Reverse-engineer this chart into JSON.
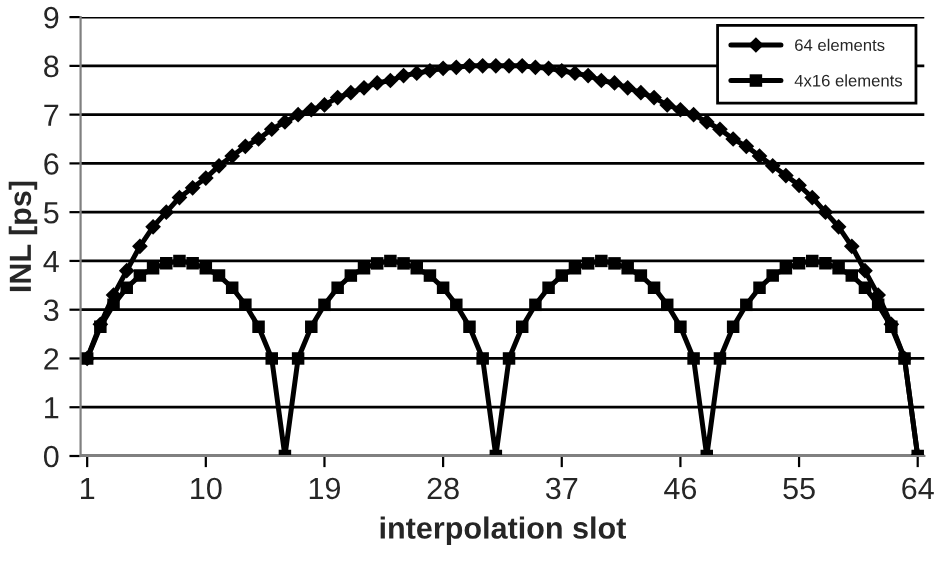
{
  "chart_data": {
    "type": "line",
    "xlabel": "interpolation slot",
    "ylabel": "INL [ps]",
    "x": [
      1,
      2,
      3,
      4,
      5,
      6,
      7,
      8,
      9,
      10,
      11,
      12,
      13,
      14,
      15,
      16,
      17,
      18,
      19,
      20,
      21,
      22,
      23,
      24,
      25,
      26,
      27,
      28,
      29,
      30,
      31,
      32,
      33,
      34,
      35,
      36,
      37,
      38,
      39,
      40,
      41,
      42,
      43,
      44,
      45,
      46,
      47,
      48,
      49,
      50,
      51,
      52,
      53,
      54,
      55,
      56,
      57,
      58,
      59,
      60,
      61,
      62,
      63,
      64
    ],
    "series": [
      {
        "name": "64 elements",
        "color": "#000000",
        "marker": "diamond",
        "values": [
          2,
          2.7,
          3.3,
          3.8,
          4.3,
          4.7,
          5.0,
          5.3,
          5.5,
          5.7,
          5.95,
          6.15,
          6.35,
          6.5,
          6.7,
          6.85,
          7.0,
          7.1,
          7.2,
          7.35,
          7.45,
          7.55,
          7.65,
          7.7,
          7.8,
          7.85,
          7.9,
          7.95,
          7.97,
          8.0,
          8.0,
          8.0,
          8.0,
          8.0,
          7.97,
          7.95,
          7.9,
          7.85,
          7.8,
          7.7,
          7.65,
          7.55,
          7.45,
          7.35,
          7.2,
          7.1,
          7.0,
          6.85,
          6.7,
          6.5,
          6.35,
          6.15,
          5.95,
          5.75,
          5.55,
          5.3,
          5.0,
          4.7,
          4.3,
          3.8,
          3.3,
          2.7,
          2.0,
          0
        ]
      },
      {
        "name": "4x16 elements",
        "color": "#000000",
        "marker": "square",
        "values": [
          2,
          2.65,
          3.1,
          3.45,
          3.7,
          3.85,
          3.95,
          4.0,
          3.95,
          3.85,
          3.7,
          3.45,
          3.1,
          2.65,
          2,
          0,
          2,
          2.65,
          3.1,
          3.45,
          3.7,
          3.85,
          3.95,
          4.0,
          3.95,
          3.85,
          3.7,
          3.45,
          3.1,
          2.65,
          2,
          0,
          2,
          2.65,
          3.1,
          3.45,
          3.7,
          3.85,
          3.95,
          4.0,
          3.95,
          3.85,
          3.7,
          3.45,
          3.1,
          2.65,
          2,
          0,
          2,
          2.65,
          3.1,
          3.45,
          3.7,
          3.85,
          3.95,
          4.0,
          3.95,
          3.85,
          3.7,
          3.45,
          3.1,
          2.65,
          2,
          0
        ]
      }
    ],
    "xlim": [
      0.5,
      64.5
    ],
    "xticks": [
      1,
      10,
      19,
      28,
      37,
      46,
      55,
      64
    ],
    "ylim": [
      0,
      9
    ],
    "yticks": [
      0,
      1,
      2,
      3,
      4,
      5,
      6,
      7,
      8,
      9
    ],
    "grid": "y",
    "legend": "top right",
    "line_style": "solid"
  }
}
